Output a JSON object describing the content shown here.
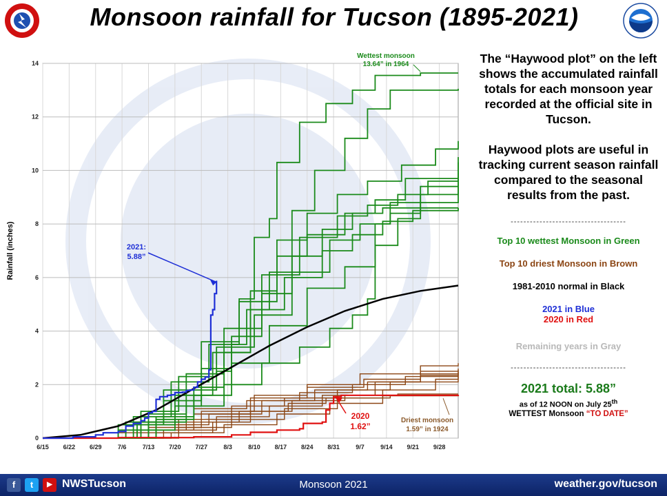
{
  "title": "Monsoon rainfall for Tucson (1895-2021)",
  "logos": {
    "left_icon": "nws-logo-icon",
    "right_icon": "noaa-logo-icon",
    "watermark_icon": "noaa-watermark-icon"
  },
  "side_panel": {
    "para1": "The “Haywood plot” on the left shows the accumulated rainfall totals for each monsoon year recorded at the official site in Tucson.",
    "para2": "Haywood plots are useful in tracking current season rainfall compared to the seasonal results from the past.",
    "separator": "------------------------------------",
    "legend": [
      {
        "text": "Top 10 wettest Monsoon in Green",
        "color": "#1a8a1a"
      },
      {
        "text": "Top 10 driest Monsoon in Brown",
        "color": "#8b4513"
      },
      {
        "text": "1981-2010 normal in Black",
        "color": "#000000"
      }
    ],
    "legend_2021": {
      "text": "2021 in Blue",
      "color": "#1e2fd6"
    },
    "legend_2020": {
      "text": "2020 in Red",
      "color": "#e01010"
    },
    "legend_gray": {
      "text": "Remaining years in Gray",
      "color": "#b8b8b8"
    },
    "total": "2021 total:  5.88”",
    "as_of_prefix": "as of 12 NOON on July 25",
    "as_of_sup": "th",
    "todate_prefix": "WETTEST Monsoon ",
    "todate_highlight": "“TO DATE”"
  },
  "footer": {
    "facebook": "f",
    "twitter": "t",
    "youtube": "▶",
    "handle": "NWSTucson",
    "center": "Monsoon 2021",
    "site": "weather.gov/tucson"
  },
  "chart_data": {
    "type": "line",
    "title": "",
    "xlabel": "",
    "ylabel": "Rainfall (inches)",
    "x_tick_labels": [
      "6/15",
      "6/22",
      "6/29",
      "7/6",
      "7/13",
      "7/20",
      "7/27",
      "8/3",
      "8/10",
      "8/17",
      "8/24",
      "8/31",
      "9/7",
      "9/14",
      "9/21",
      "9/28"
    ],
    "y_ticks": [
      0,
      2,
      4,
      6,
      8,
      10,
      12,
      14
    ],
    "xlim_days": [
      0,
      110
    ],
    "ylim": [
      0,
      14
    ],
    "grid": true,
    "normal_1981_2010": [
      [
        0,
        0
      ],
      [
        10,
        0.12
      ],
      [
        20,
        0.45
      ],
      [
        30,
        1.05
      ],
      [
        40,
        1.85
      ],
      [
        50,
        2.65
      ],
      [
        60,
        3.45
      ],
      [
        70,
        4.15
      ],
      [
        80,
        4.75
      ],
      [
        90,
        5.2
      ],
      [
        100,
        5.5
      ],
      [
        110,
        5.7
      ]
    ],
    "year_2021": [
      [
        0,
        0
      ],
      [
        8,
        0.05
      ],
      [
        14,
        0.12
      ],
      [
        16,
        0.2
      ],
      [
        20,
        0.25
      ],
      [
        22,
        0.45
      ],
      [
        24,
        0.55
      ],
      [
        26,
        0.65
      ],
      [
        27,
        0.75
      ],
      [
        28,
        0.95
      ],
      [
        29,
        1.0
      ],
      [
        30,
        1.45
      ],
      [
        31,
        1.55
      ],
      [
        33,
        1.6
      ],
      [
        34,
        1.62
      ],
      [
        35,
        1.7
      ],
      [
        37,
        1.72
      ],
      [
        38,
        1.78
      ],
      [
        39,
        1.8
      ],
      [
        40,
        1.9
      ],
      [
        41,
        2.1
      ],
      [
        42,
        2.2
      ],
      [
        43,
        2.28
      ],
      [
        44,
        2.55
      ],
      [
        44.5,
        4.6
      ],
      [
        45,
        4.8
      ],
      [
        45.5,
        5.4
      ],
      [
        46,
        5.88
      ]
    ],
    "year_2020": [
      [
        0,
        0
      ],
      [
        20,
        0.02
      ],
      [
        40,
        0.05
      ],
      [
        50,
        0.12
      ],
      [
        55,
        0.22
      ],
      [
        62,
        0.3
      ],
      [
        68,
        0.35
      ],
      [
        69,
        0.55
      ],
      [
        74,
        0.6
      ],
      [
        75,
        1.05
      ],
      [
        76,
        1.3
      ],
      [
        77,
        1.55
      ],
      [
        79,
        1.6
      ],
      [
        110,
        1.62
      ]
    ],
    "wettest_years": [
      [
        [
          0,
          0
        ],
        [
          20,
          0.3
        ],
        [
          35,
          1.2
        ],
        [
          42,
          1.8
        ],
        [
          46,
          2.5
        ],
        [
          50,
          3.5
        ],
        [
          52,
          5.2
        ],
        [
          56,
          7.5
        ],
        [
          60,
          8.2
        ],
        [
          62,
          10.3
        ],
        [
          68,
          11.8
        ],
        [
          75,
          12.5
        ],
        [
          82,
          13.0
        ],
        [
          88,
          13.55
        ],
        [
          94,
          13.55
        ],
        [
          100,
          13.64
        ],
        [
          110,
          13.64
        ]
      ],
      [
        [
          0,
          0
        ],
        [
          30,
          0.8
        ],
        [
          40,
          1.9
        ],
        [
          48,
          3.2
        ],
        [
          55,
          4.8
        ],
        [
          60,
          6.2
        ],
        [
          66,
          8.5
        ],
        [
          72,
          10.0
        ],
        [
          80,
          11.2
        ],
        [
          86,
          12.3
        ],
        [
          92,
          13.0
        ],
        [
          110,
          13.05
        ]
      ],
      [
        [
          0,
          0
        ],
        [
          25,
          0.5
        ],
        [
          35,
          1.6
        ],
        [
          45,
          3.2
        ],
        [
          55,
          5.5
        ],
        [
          62,
          7.4
        ],
        [
          70,
          8.4
        ],
        [
          78,
          9.1
        ],
        [
          86,
          9.6
        ],
        [
          95,
          10.2
        ],
        [
          104,
          10.8
        ],
        [
          110,
          11.1
        ]
      ],
      [
        [
          0,
          0
        ],
        [
          28,
          0.9
        ],
        [
          38,
          2.4
        ],
        [
          48,
          4.1
        ],
        [
          58,
          6.1
        ],
        [
          68,
          7.5
        ],
        [
          78,
          8.3
        ],
        [
          86,
          8.7
        ],
        [
          94,
          9.1
        ],
        [
          102,
          9.6
        ],
        [
          110,
          10.5
        ]
      ],
      [
        [
          0,
          0
        ],
        [
          22,
          0.6
        ],
        [
          32,
          1.8
        ],
        [
          42,
          3.6
        ],
        [
          52,
          5.1
        ],
        [
          62,
          6.8
        ],
        [
          70,
          7.6
        ],
        [
          80,
          8.4
        ],
        [
          88,
          8.9
        ],
        [
          96,
          9.7
        ],
        [
          110,
          10.3
        ]
      ],
      [
        [
          0,
          0
        ],
        [
          26,
          1.0
        ],
        [
          36,
          2.3
        ],
        [
          46,
          3.4
        ],
        [
          56,
          4.6
        ],
        [
          66,
          6.2
        ],
        [
          76,
          7.4
        ],
        [
          84,
          8.0
        ],
        [
          92,
          8.8
        ],
        [
          100,
          9.4
        ],
        [
          110,
          9.9
        ]
      ],
      [
        [
          0,
          0
        ],
        [
          30,
          0.7
        ],
        [
          40,
          1.6
        ],
        [
          50,
          2.8
        ],
        [
          60,
          4.2
        ],
        [
          70,
          5.6
        ],
        [
          80,
          6.4
        ],
        [
          88,
          7.2
        ],
        [
          94,
          8.2
        ],
        [
          100,
          9.1
        ],
        [
          110,
          9.5
        ]
      ],
      [
        [
          0,
          0
        ],
        [
          24,
          0.8
        ],
        [
          34,
          2.1
        ],
        [
          44,
          3.5
        ],
        [
          54,
          4.8
        ],
        [
          64,
          6.0
        ],
        [
          74,
          7.0
        ],
        [
          82,
          7.6
        ],
        [
          90,
          8.1
        ],
        [
          98,
          8.5
        ],
        [
          110,
          8.6
        ]
      ],
      [
        [
          0,
          0
        ],
        [
          20,
          0.5
        ],
        [
          32,
          1.4
        ],
        [
          42,
          2.6
        ],
        [
          50,
          3.8
        ],
        [
          58,
          5.4
        ],
        [
          66,
          6.8
        ],
        [
          74,
          7.8
        ],
        [
          82,
          8.4
        ],
        [
          90,
          8.6
        ],
        [
          110,
          8.6
        ]
      ],
      [
        [
          0,
          0
        ],
        [
          28,
          0.6
        ],
        [
          38,
          1.2
        ],
        [
          48,
          2.0
        ],
        [
          58,
          2.8
        ],
        [
          68,
          3.4
        ],
        [
          76,
          4.1
        ],
        [
          82,
          4.6
        ],
        [
          86,
          5.2
        ],
        [
          88,
          8.0
        ],
        [
          92,
          8.4
        ],
        [
          100,
          8.8
        ],
        [
          110,
          9.9
        ]
      ]
    ],
    "driest_years": [
      [
        [
          0,
          0
        ],
        [
          30,
          0.2
        ],
        [
          45,
          0.6
        ],
        [
          55,
          1.0
        ],
        [
          65,
          1.3
        ],
        [
          75,
          1.5
        ],
        [
          90,
          1.58
        ],
        [
          110,
          1.59
        ]
      ],
      [
        [
          0,
          0
        ],
        [
          25,
          0.3
        ],
        [
          40,
          0.9
        ],
        [
          55,
          1.5
        ],
        [
          70,
          1.9
        ],
        [
          85,
          2.2
        ],
        [
          100,
          2.5
        ],
        [
          110,
          2.6
        ]
      ],
      [
        [
          0,
          0
        ],
        [
          28,
          0.4
        ],
        [
          42,
          1.0
        ],
        [
          56,
          1.6
        ],
        [
          70,
          2.0
        ],
        [
          84,
          2.4
        ],
        [
          100,
          2.7
        ],
        [
          110,
          2.8
        ]
      ],
      [
        [
          0,
          0
        ],
        [
          32,
          0.3
        ],
        [
          46,
          0.8
        ],
        [
          60,
          1.2
        ],
        [
          74,
          1.6
        ],
        [
          88,
          2.1
        ],
        [
          100,
          2.35
        ],
        [
          110,
          2.45
        ]
      ],
      [
        [
          0,
          0
        ],
        [
          20,
          0.2
        ],
        [
          36,
          0.7
        ],
        [
          50,
          1.2
        ],
        [
          64,
          1.5
        ],
        [
          78,
          1.8
        ],
        [
          92,
          2.1
        ],
        [
          110,
          2.3
        ]
      ],
      [
        [
          0,
          0
        ],
        [
          26,
          0.5
        ],
        [
          40,
          1.1
        ],
        [
          54,
          1.4
        ],
        [
          68,
          1.7
        ],
        [
          82,
          2.0
        ],
        [
          96,
          2.3
        ],
        [
          110,
          2.5
        ]
      ],
      [
        [
          0,
          0
        ],
        [
          34,
          0.2
        ],
        [
          48,
          0.5
        ],
        [
          62,
          0.9
        ],
        [
          76,
          1.3
        ],
        [
          90,
          1.8
        ],
        [
          104,
          2.2
        ],
        [
          110,
          2.4
        ]
      ],
      [
        [
          0,
          0
        ],
        [
          22,
          0.3
        ],
        [
          38,
          0.6
        ],
        [
          52,
          1.0
        ],
        [
          66,
          1.4
        ],
        [
          80,
          1.6
        ],
        [
          94,
          1.65
        ],
        [
          110,
          1.65
        ]
      ],
      [
        [
          0,
          0
        ],
        [
          30,
          0.5
        ],
        [
          44,
          0.9
        ],
        [
          58,
          1.4
        ],
        [
          72,
          1.8
        ],
        [
          86,
          2.1
        ],
        [
          100,
          2.4
        ],
        [
          110,
          2.55
        ]
      ],
      [
        [
          0,
          0
        ],
        [
          36,
          0.4
        ],
        [
          50,
          0.7
        ],
        [
          64,
          1.1
        ],
        [
          78,
          1.5
        ],
        [
          92,
          1.6
        ],
        [
          110,
          1.62
        ]
      ]
    ],
    "annotations": {
      "wettest_line1": "Wettest monsoon",
      "wettest_line2": "13.64” in 1964",
      "year2021_line1": "2021:",
      "year2021_line2": "5.88”",
      "year2020_line1": "2020",
      "year2020_line2": "1.62”",
      "driest_line1": "Driest monsoon",
      "driest_line2": "1.59” in 1924"
    },
    "colors": {
      "wettest": "#1a8a1a",
      "driest": "#8b4513",
      "normal": "#000000",
      "y2021": "#1e2fd6",
      "y2020": "#e01010",
      "others": "#c8c8c8",
      "annotation_wettest": "#1a8a1a",
      "annotation_driest": "#8b5a2b"
    }
  }
}
